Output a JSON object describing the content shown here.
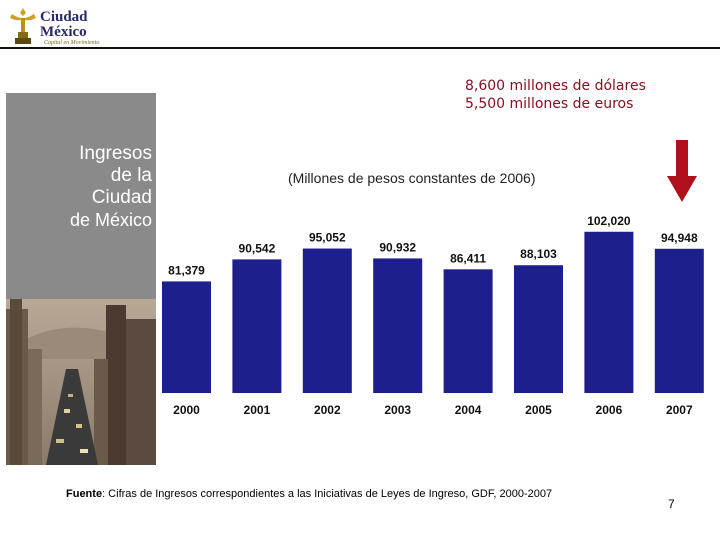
{
  "header": {
    "logo_line1": "Ciudad",
    "logo_line2": "México",
    "logo_subtitle": "Capital en Movimiento"
  },
  "side_panel": {
    "title_lines": [
      "Ingresos",
      "de la",
      "Ciudad",
      "de México"
    ]
  },
  "conversion": {
    "usd": "8,600 millones de dólares",
    "eur": "5,500 millones de euros"
  },
  "footer": {
    "source_label": "Fuente",
    "source_text": ": Cifras de Ingresos correspondientes a las Iniciativas de Leyes de Ingreso,  GDF, 2000-2007",
    "page_number": "7"
  },
  "colors": {
    "bar": "#1c1f8c",
    "arrow": "#b0101c",
    "accent_text": "#8a1020"
  },
  "chart_data": {
    "type": "bar",
    "title": "Ingresos de la Ciudad de México",
    "subtitle": "(Millones de pesos constantes de 2006)",
    "categories": [
      "2000",
      "2001",
      "2002",
      "2003",
      "2004",
      "2005",
      "2006",
      "2007"
    ],
    "values": [
      81379,
      90542,
      95052,
      90932,
      86411,
      88103,
      102020,
      94948
    ],
    "value_labels": [
      "81,379",
      "90,542",
      "95,052",
      "90,932",
      "86,411",
      "88,103",
      "102,020",
      "94,948"
    ],
    "xlabel": "",
    "ylabel": "",
    "ylim": [
      35000,
      104000
    ],
    "grid": false
  }
}
